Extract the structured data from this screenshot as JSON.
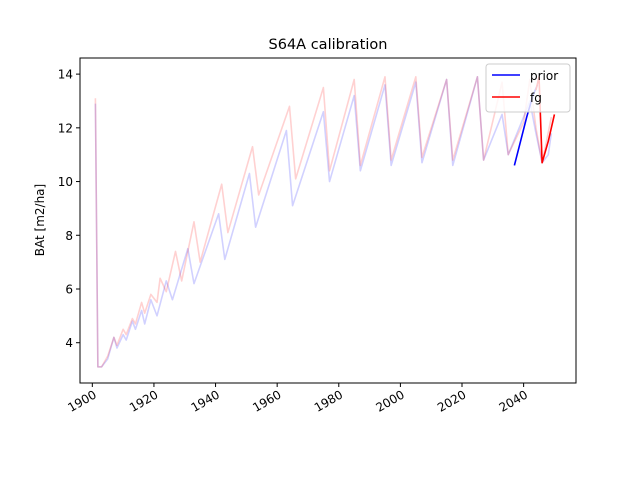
{
  "chart_data": {
    "type": "line",
    "title": "S64A calibration",
    "xlabel": "",
    "ylabel": "BAt [m2/ha]",
    "xlim": [
      1896,
      2057
    ],
    "ylim": [
      2.5,
      14.6
    ],
    "xticks": [
      1900,
      1920,
      1940,
      1960,
      1980,
      2000,
      2020,
      2040
    ],
    "yticks": [
      4,
      6,
      8,
      10,
      12,
      14
    ],
    "grid": false,
    "legend_position": "top-right",
    "series": [
      {
        "name": "",
        "color": "#0000ff",
        "opacity": 0.18,
        "points": [
          [
            1901,
            12.9
          ],
          [
            1901.8,
            3.1
          ],
          [
            1903,
            3.1
          ],
          [
            1905,
            3.4
          ],
          [
            1907,
            4.2
          ],
          [
            1908,
            3.8
          ],
          [
            1910,
            4.3
          ],
          [
            1911,
            4.1
          ],
          [
            1913,
            4.8
          ],
          [
            1914,
            4.5
          ],
          [
            1916,
            5.2
          ],
          [
            1917,
            4.7
          ],
          [
            1919,
            5.6
          ],
          [
            1921,
            5.0
          ],
          [
            1924,
            6.3
          ],
          [
            1926,
            5.6
          ],
          [
            1931,
            7.5
          ],
          [
            1933,
            6.2
          ],
          [
            1941,
            8.8
          ],
          [
            1943,
            7.1
          ],
          [
            1951,
            10.3
          ],
          [
            1953,
            8.3
          ],
          [
            1963,
            11.9
          ],
          [
            1965,
            9.1
          ],
          [
            1975,
            12.6
          ],
          [
            1977,
            10.0
          ],
          [
            1985,
            13.2
          ],
          [
            1987,
            10.4
          ],
          [
            1995,
            13.6
          ],
          [
            1997,
            10.6
          ],
          [
            2005,
            13.7
          ],
          [
            2007,
            10.7
          ],
          [
            2015,
            13.8
          ],
          [
            2017,
            10.6
          ],
          [
            2025,
            13.9
          ],
          [
            2027,
            10.8
          ],
          [
            2033,
            12.5
          ],
          [
            2035,
            11.0
          ],
          [
            2040,
            12.4
          ],
          [
            2042,
            13.0
          ],
          [
            2044,
            11.8
          ],
          [
            2046,
            10.7
          ],
          [
            2048,
            11.0
          ],
          [
            2049,
            11.8
          ]
        ]
      },
      {
        "name": "",
        "color": "#ff0000",
        "opacity": 0.18,
        "points": [
          [
            1901,
            13.1
          ],
          [
            1901.8,
            3.1
          ],
          [
            1903,
            3.1
          ],
          [
            1905,
            3.5
          ],
          [
            1907,
            4.2
          ],
          [
            1908,
            3.9
          ],
          [
            1910,
            4.5
          ],
          [
            1911,
            4.3
          ],
          [
            1913,
            4.9
          ],
          [
            1914,
            4.7
          ],
          [
            1916,
            5.5
          ],
          [
            1917,
            5.1
          ],
          [
            1919,
            5.8
          ],
          [
            1921,
            5.5
          ],
          [
            1922,
            6.4
          ],
          [
            1924,
            5.9
          ],
          [
            1927,
            7.4
          ],
          [
            1929,
            6.3
          ],
          [
            1933,
            8.5
          ],
          [
            1935,
            7.0
          ],
          [
            1942,
            9.9
          ],
          [
            1944,
            8.1
          ],
          [
            1952,
            11.3
          ],
          [
            1954,
            9.5
          ],
          [
            1964,
            12.8
          ],
          [
            1966,
            10.1
          ],
          [
            1975,
            13.5
          ],
          [
            1977,
            10.4
          ],
          [
            1985,
            13.8
          ],
          [
            1987,
            10.6
          ],
          [
            1995,
            13.9
          ],
          [
            1997,
            10.8
          ],
          [
            2005,
            13.9
          ],
          [
            2007,
            10.9
          ],
          [
            2015,
            13.8
          ],
          [
            2017,
            10.8
          ],
          [
            2025,
            13.9
          ],
          [
            2027,
            10.8
          ],
          [
            2033,
            13.7
          ],
          [
            2035,
            11.0
          ],
          [
            2040,
            12.2
          ],
          [
            2042,
            13.8
          ],
          [
            2044,
            12.0
          ],
          [
            2046,
            10.7
          ],
          [
            2049,
            12.4
          ]
        ]
      },
      {
        "name": "prior",
        "color": "#0000ff",
        "opacity": 1,
        "points": [
          [
            2037,
            10.6
          ],
          [
            2039,
            11.5
          ],
          [
            2041,
            12.4
          ],
          [
            2043,
            13.2
          ],
          [
            2044.5,
            13.6
          ]
        ]
      },
      {
        "name": "fg",
        "color": "#ff0000",
        "opacity": 1,
        "points": [
          [
            2044,
            13.4
          ],
          [
            2045,
            13.9
          ],
          [
            2046,
            10.7
          ],
          [
            2048,
            11.5
          ],
          [
            2050,
            12.5
          ]
        ]
      }
    ]
  }
}
